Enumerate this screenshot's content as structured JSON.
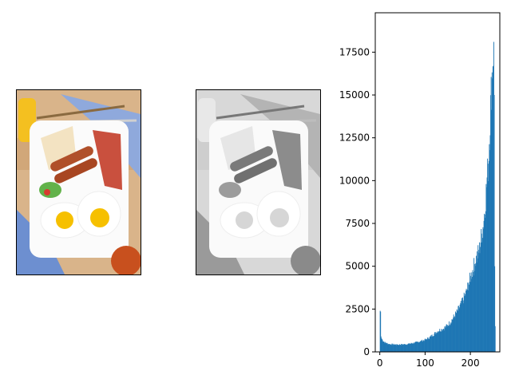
{
  "chart_data": [
    {
      "type": "image",
      "panel": "original-color-photo"
    },
    {
      "type": "image",
      "panel": "grayscale-photo"
    },
    {
      "type": "histogram",
      "bar_color": "#1f77b4",
      "xlim": [
        -10,
        265
      ],
      "ylim": [
        0,
        19800
      ],
      "xticks": [
        0,
        100,
        200
      ],
      "yticks": [
        0,
        2500,
        5000,
        7500,
        10000,
        12500,
        15000,
        17500
      ],
      "bins": 256,
      "control_points": [
        [
          0,
          2400
        ],
        [
          1,
          2350
        ],
        [
          2,
          900
        ],
        [
          3,
          800
        ],
        [
          5,
          700
        ],
        [
          10,
          550
        ],
        [
          20,
          450
        ],
        [
          40,
          420
        ],
        [
          60,
          450
        ],
        [
          80,
          550
        ],
        [
          100,
          700
        ],
        [
          110,
          850
        ],
        [
          120,
          1050
        ],
        [
          130,
          1250
        ],
        [
          140,
          1350
        ],
        [
          150,
          1550
        ],
        [
          160,
          1900
        ],
        [
          170,
          2300
        ],
        [
          180,
          2800
        ],
        [
          190,
          3400
        ],
        [
          200,
          4300
        ],
        [
          210,
          5200
        ],
        [
          220,
          6000
        ],
        [
          228,
          7300
        ],
        [
          232,
          8300
        ],
        [
          236,
          9700
        ],
        [
          240,
          11200
        ],
        [
          243,
          13000
        ],
        [
          246,
          15000
        ],
        [
          248,
          16200
        ],
        [
          250,
          17200
        ],
        [
          252,
          18100
        ],
        [
          253,
          15000
        ],
        [
          254,
          5000
        ],
        [
          255,
          1500
        ]
      ]
    }
  ]
}
